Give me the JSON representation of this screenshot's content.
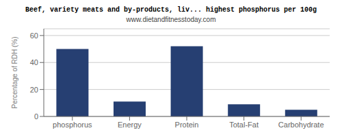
{
  "chart_data": {
    "type": "bar",
    "title": "Beef, variety meats and by-products, liv... highest phosphorus per 100g",
    "subtitle": "www.dietandfitnesstoday.com",
    "categories": [
      "phosphorus",
      "Energy",
      "Protein",
      "Total-Fat",
      "Carbohydrate"
    ],
    "values": [
      50,
      11,
      52,
      9,
      5
    ],
    "color": "#263f72",
    "ylabel": "Percentage of RDH (%)",
    "ylim": [
      0,
      65
    ],
    "yticks": [
      0,
      20,
      40,
      60
    ],
    "grid": true
  }
}
